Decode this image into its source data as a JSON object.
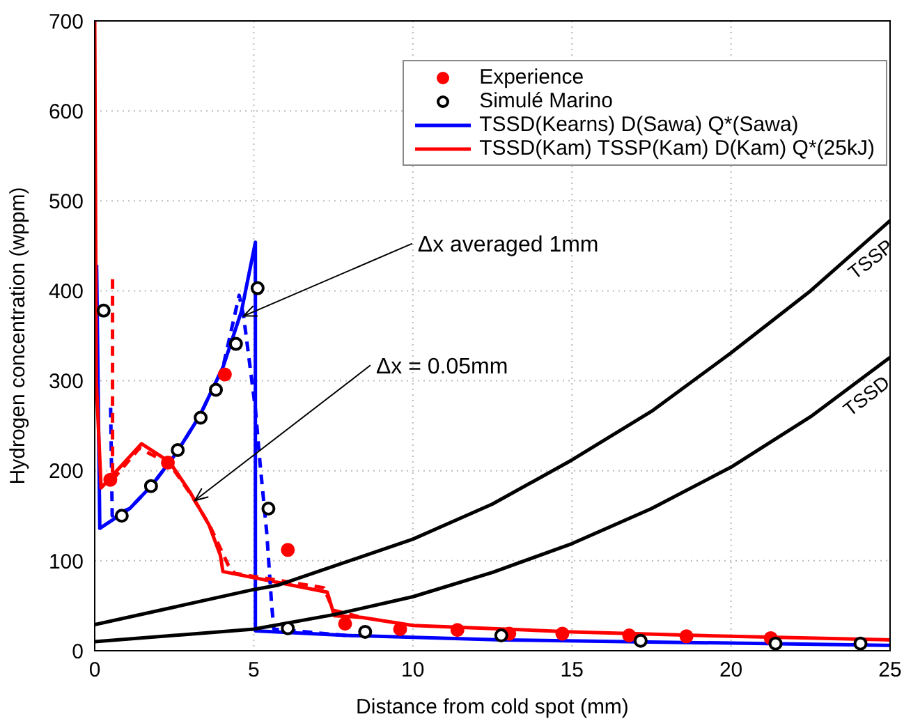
{
  "chart_data": {
    "type": "line",
    "xlabel": "Distance from cold spot (mm)",
    "ylabel": "Hydrogen concentration (wppm)",
    "xlim": [
      0,
      25
    ],
    "xticks": [
      0,
      5,
      10,
      15,
      20,
      25
    ],
    "ylim": [
      0,
      700
    ],
    "yticks": [
      0,
      100,
      200,
      300,
      400,
      500,
      600,
      700
    ],
    "grid": true,
    "legend": "top right",
    "series": [
      {
        "name": "Experience",
        "type": "scatter",
        "marker": "circle",
        "color": "#ff0000",
        "x": [
          0.49,
          2.3,
          4.09,
          6.07,
          7.87,
          9.6,
          11.4,
          13.03,
          14.7,
          16.8,
          18.6,
          21.25
        ],
        "values": [
          190,
          209,
          307,
          112,
          30,
          24,
          23,
          19,
          19,
          17,
          16,
          14
        ]
      },
      {
        "name": "Simulé Marino",
        "type": "scatter",
        "marker": "circle",
        "color": "#000000",
        "x": [
          0.28,
          0.85,
          1.77,
          2.61,
          3.33,
          3.81,
          4.44,
          5.12,
          5.46,
          6.07,
          8.5,
          12.78,
          17.16,
          21.4,
          24.07
        ],
        "values": [
          378,
          150,
          183,
          223,
          259,
          290,
          341,
          403,
          158,
          25,
          21,
          17,
          11,
          8,
          8
        ]
      },
      {
        "name": "TSSD(Kearns) D(Sawa) Q*(Sawa)",
        "line_style": "solid",
        "color": "#0000ff",
        "x": [
          0.06,
          0.16,
          1.1,
          1.8,
          2.57,
          3.3,
          4.03,
          4.61,
          5.05,
          5.05,
          7.9,
          12.8,
          25
        ],
        "values": [
          429,
          136,
          158,
          184,
          220,
          261,
          315,
          377,
          454,
          22,
          17,
          12,
          6
        ]
      },
      {
        "name": "TSSD(Kam) TSSP(Kam) D(Kam) Q*(25kJ)",
        "line_style": "solid",
        "color": "#ff0000",
        "x": [
          0,
          0.05,
          0.2,
          1.47,
          2.35,
          3.0,
          3.59,
          3.95,
          4.03,
          7.31,
          7.53,
          8.4,
          10,
          15,
          20,
          25
        ],
        "values": [
          700,
          300,
          181,
          230,
          210,
          176,
          140,
          106,
          88,
          65,
          39,
          37,
          28,
          21,
          16,
          12
        ]
      },
      {
        "line_style": "dashed",
        "color": "#0000ff",
        "x": [
          0.5,
          0.55,
          1.1,
          1.8,
          2.57,
          3.3,
          4.03,
          4.54,
          4.68,
          5.05,
          5.2,
          5.41,
          5.56,
          5.63,
          7.9
        ],
        "values": [
          270,
          150,
          158,
          184,
          220,
          261,
          315,
          395,
          372,
          269,
          207,
          130,
          52,
          24,
          17
        ]
      },
      {
        "line_style": "dashed",
        "color": "#ff0000",
        "x": [
          0.56,
          0.56,
          1.4,
          2.35,
          3.0,
          3.6,
          4.2,
          4.4,
          7.2,
          7.5,
          8.4
        ],
        "values": [
          413,
          190,
          225,
          208,
          175,
          140,
          95,
          86,
          70,
          45,
          37
        ]
      },
      {
        "line_style": "solid",
        "color": "#000000",
        "x": [
          0,
          5,
          5.78,
          10,
          12.5,
          15,
          17.5,
          20,
          22.5,
          25
        ],
        "values": [
          29,
          68,
          73,
          124,
          163,
          212,
          266,
          331,
          400,
          478
        ]
      },
      {
        "line_style": "solid",
        "color": "#000000",
        "x": [
          0,
          5,
          7.5,
          10,
          12.5,
          15,
          17.5,
          20,
          22.5,
          25
        ],
        "values": [
          10,
          24,
          40,
          60,
          87,
          119,
          158,
          204,
          260,
          326
        ]
      }
    ],
    "annotations": [
      {
        "text": "Δx averaged 1mm",
        "x": 4.68,
        "y": 372
      },
      {
        "text": "Δx = 0.05mm",
        "x": 3.15,
        "y": 167
      },
      "TSSP",
      "TSSD"
    ]
  }
}
